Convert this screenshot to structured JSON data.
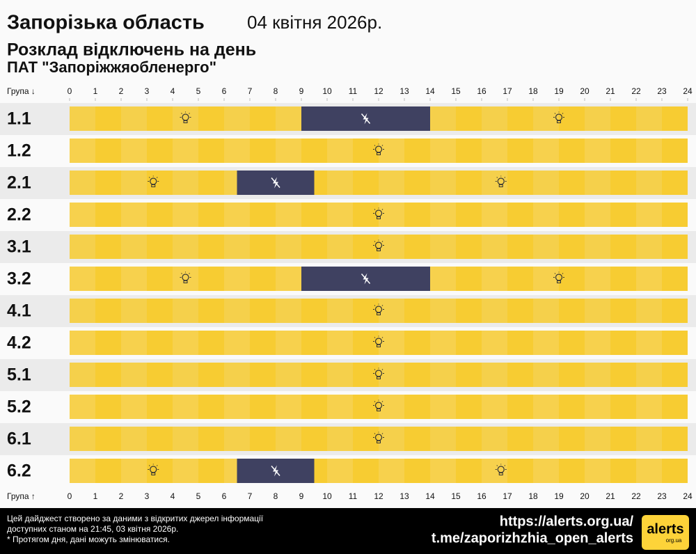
{
  "chart_data": {
    "type": "schedule",
    "title": "Запорізька область",
    "date": "04 квітня 2026р.",
    "subtitle": "Розклад відключень на день",
    "company": "ПАТ \"Запоріжжяобленерго\"",
    "group_label_top": "Група ↓",
    "group_label_bottom": "Група ↑",
    "xlim": [
      0,
      24
    ],
    "xticks": [
      0,
      1,
      2,
      3,
      4,
      5,
      6,
      7,
      8,
      9,
      10,
      11,
      12,
      13,
      14,
      15,
      16,
      17,
      18,
      19,
      20,
      21,
      22,
      23,
      24
    ],
    "on_color": "#fdd339",
    "off_color": "#3f4161",
    "groups": [
      {
        "name": "1.1",
        "outages": [
          [
            9,
            14
          ]
        ]
      },
      {
        "name": "1.2",
        "outages": []
      },
      {
        "name": "2.1",
        "outages": [
          [
            6.5,
            9.5
          ]
        ]
      },
      {
        "name": "2.2",
        "outages": []
      },
      {
        "name": "3.1",
        "outages": []
      },
      {
        "name": "3.2",
        "outages": [
          [
            9,
            14
          ]
        ]
      },
      {
        "name": "4.1",
        "outages": []
      },
      {
        "name": "4.2",
        "outages": []
      },
      {
        "name": "5.1",
        "outages": []
      },
      {
        "name": "5.2",
        "outages": []
      },
      {
        "name": "6.1",
        "outages": []
      },
      {
        "name": "6.2",
        "outages": [
          [
            6.5,
            9.5
          ]
        ]
      }
    ]
  },
  "footer": {
    "notes": [
      "Цей дайджест створено за даними з відкритих джерел інформації",
      "доступних станом на 21:45, 03 квітня 2026р.",
      "* Протягом дня, дані можуть змінюватися."
    ],
    "links": [
      "https://alerts.org.ua/",
      "t.me/zaporizhzhia_open_alerts"
    ],
    "logo": "alerts",
    "logo_domain": "org.ua"
  }
}
